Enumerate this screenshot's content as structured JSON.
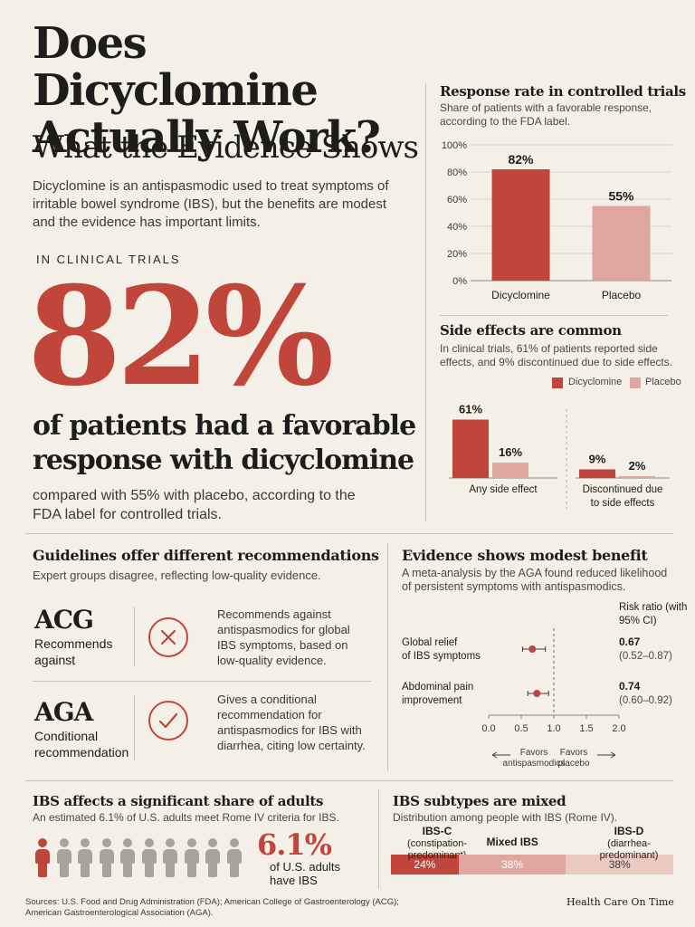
{
  "title": {
    "line1": "Does Dicyclomine Actually Work?",
    "line2": "What the Evidence Shows",
    "intro": "Dicyclomine is an antispasmodic used to treat symptoms of irritable bowel syndrome (IBS), but the benefits are modest and the evidence has important limits."
  },
  "hero": {
    "eyebrow": "IN CLINICAL TRIALS",
    "value": "82%",
    "caption": "of patients had a favorable response with dicyclomine",
    "sub": "compared with 55% with placebo, according to the FDA label for controlled trials."
  },
  "response_panel": {
    "title": "Response rate in controlled trials",
    "subtitle": "Share of patients with a favorable response, according to the FDA label."
  },
  "side_panel": {
    "title": "Side effects are common",
    "subtitle": "In clinical trials, 61% of patients reported side effects, and 9% discontinued due to side effects.",
    "legend": [
      "Dicyclomine",
      "Placebo"
    ]
  },
  "guidelines": {
    "title": "Guidelines offer different recommendations",
    "subtitle": "Expert groups disagree, reflecting low-quality evidence.",
    "items": [
      {
        "code": "ACG",
        "label": "Recommends against",
        "icon": "x-circle-icon",
        "text": "Recommends against antispasmodics for global IBS symptoms, based on low-quality evidence."
      },
      {
        "code": "AGA",
        "label": "Conditional recommendation",
        "icon": "check-circle-icon",
        "text": "Gives a conditional recommendation for antispasmodics for IBS with diarrhea, citing low certainty."
      }
    ]
  },
  "evidence_panel": {
    "title": "Evidence shows modest benefit",
    "subtitle": "A meta-analysis by the AGA found reduced likelihood of persistent symptoms with antispasmodics.",
    "col_header": "Risk ratio (with 95% CI)",
    "favors_left": "Favors antispasmodics",
    "favors_right": "Favors placebo"
  },
  "adults_panel": {
    "title": "IBS affects a significant share of adults",
    "subtitle": "An estimated 6.1% of U.S. adults meet Rome IV criteria for IBS.",
    "value": "6.1%",
    "caption": "of U.S. adults have IBS",
    "people_total": 10,
    "people_highlighted": 1
  },
  "subtypes_panel": {
    "title": "IBS subtypes are mixed",
    "subtitle": "Distribution among people with IBS (Rome IV)."
  },
  "footer": {
    "sources": "Sources: U.S. Food and Drug Administration (FDA); American College of Gastroenterology (ACG); American Gastroenterological Association (AGA).",
    "brand": "Health Care On Time"
  },
  "colors": {
    "accent": "#c0463b",
    "accent_light": "#dfa69d",
    "accent_pale": "#ecc9c1",
    "background": "#f4efe7",
    "muted": "#a9a39c"
  },
  "chart_data": [
    {
      "type": "bar",
      "id": "response",
      "categories": [
        "Dicyclomine",
        "Placebo"
      ],
      "values": [
        82,
        55
      ],
      "labels": [
        "82%",
        "55%"
      ],
      "yticks": [
        "0%",
        "20%",
        "40%",
        "60%",
        "80%",
        "100%"
      ],
      "ylim": [
        0,
        100
      ]
    },
    {
      "type": "bar",
      "id": "side_effects",
      "categories": [
        "Any side effect",
        "Discontinued due to side effects"
      ],
      "series": [
        {
          "name": "Dicyclomine",
          "values": [
            61,
            9
          ],
          "labels": [
            "61%",
            "9%"
          ]
        },
        {
          "name": "Placebo",
          "values": [
            16,
            2
          ],
          "labels": [
            "16%",
            "2%"
          ]
        }
      ],
      "ylim": [
        0,
        70
      ]
    },
    {
      "type": "scatter",
      "id": "forest",
      "rows": [
        {
          "label": "Global relief of IBS symptoms",
          "rr": 0.67,
          "lo": 0.52,
          "hi": 0.87,
          "rr_text": "0.67",
          "ci_text": "(0.52–0.87)"
        },
        {
          "label": "Abdominal pain improvement",
          "rr": 0.74,
          "lo": 0.6,
          "hi": 0.92,
          "rr_text": "0.74",
          "ci_text": "(0.60–0.92)"
        }
      ],
      "xticks": [
        "0.0",
        "0.5",
        "1.0",
        "1.5",
        "2.0"
      ],
      "xlim": [
        0,
        2
      ],
      "reference": 1.0
    },
    {
      "type": "bar",
      "id": "subtypes",
      "stacked": true,
      "segments": [
        {
          "name": "IBS-C",
          "desc": "(constipation-predominant)",
          "value": 24,
          "label": "24%"
        },
        {
          "name": "Mixed IBS",
          "desc": "",
          "value": 38,
          "label": "38%"
        },
        {
          "name": "IBS-D",
          "desc": "(diarrhea-predominant)",
          "value": 38,
          "label": "38%"
        }
      ]
    }
  ]
}
